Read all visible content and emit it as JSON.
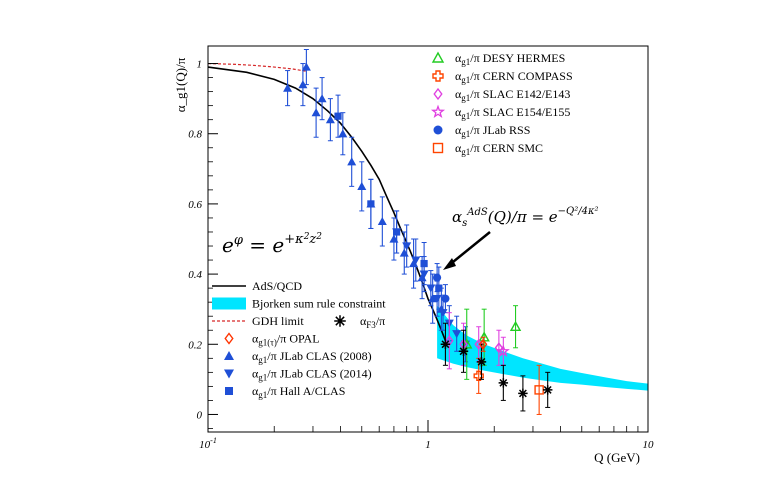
{
  "chart_data": {
    "type": "scatter",
    "title": "",
    "xlabel": "Q (GeV)",
    "ylabel": "α_g1(Q)/π",
    "xscale": "log",
    "xlim": [
      0.1,
      10
    ],
    "ylim": [
      -0.05,
      1.05
    ],
    "x_ticks": [
      {
        "value": 0.1,
        "label": "10",
        "sup": "-1"
      },
      {
        "value": 1,
        "label": "1",
        "sup": ""
      },
      {
        "value": 10,
        "label": "10",
        "sup": ""
      }
    ],
    "y_ticks": [
      {
        "value": 0,
        "label": "0"
      },
      {
        "value": 0.2,
        "label": "0.2"
      },
      {
        "value": 0.4,
        "label": "0.4"
      },
      {
        "value": 0.6,
        "label": "0.6"
      },
      {
        "value": 0.8,
        "label": "0.8"
      },
      {
        "value": 1,
        "label": "1"
      }
    ],
    "grid": false,
    "formula_left": "e^φ = e^{+κ²z²}",
    "formula_right": "α_s^AdS(Q)/π = e^{-Q²/4κ²}",
    "curves": {
      "ads_qcd": {
        "name": "AdS/QCD",
        "color": "#000000",
        "x": [
          0.1,
          0.15,
          0.2,
          0.25,
          0.3,
          0.35,
          0.4,
          0.45,
          0.5,
          0.55,
          0.6,
          0.65,
          0.7,
          0.75,
          0.8,
          0.85,
          0.9,
          0.95,
          1.0,
          1.05,
          1.1,
          1.15,
          1.2
        ],
        "y": [
          0.99,
          0.975,
          0.955,
          0.93,
          0.9,
          0.865,
          0.83,
          0.79,
          0.75,
          0.71,
          0.67,
          0.62,
          0.575,
          0.53,
          0.49,
          0.45,
          0.41,
          0.37,
          0.33,
          0.3,
          0.27,
          0.24,
          0.21
        ]
      },
      "gdh_limit": {
        "name": "GDH limit",
        "color": "#d62728",
        "x": [
          0.1,
          0.13,
          0.16,
          0.2,
          0.24,
          0.28
        ],
        "y": [
          1.0,
          0.998,
          0.995,
          0.99,
          0.985,
          0.978
        ]
      }
    },
    "band": {
      "name": "Bjorken sum rule constraint",
      "color": "#00e5ff",
      "x": [
        1.1,
        1.3,
        1.5,
        1.8,
        2.2,
        2.7,
        3.3,
        4.0,
        5.0,
        6.5,
        8.0,
        10.0
      ],
      "upper": [
        0.31,
        0.255,
        0.225,
        0.2,
        0.18,
        0.16,
        0.145,
        0.13,
        0.118,
        0.105,
        0.095,
        0.088
      ],
      "lower": [
        0.16,
        0.145,
        0.135,
        0.125,
        0.115,
        0.105,
        0.097,
        0.09,
        0.085,
        0.078,
        0.073,
        0.068
      ]
    },
    "series": [
      {
        "name": "α_g1/π JLab CLAS (2008)",
        "marker": "triangle-up",
        "color": "#1f4fd6",
        "points": [
          [
            0.23,
            0.93,
            0.05
          ],
          [
            0.27,
            0.94,
            0.06
          ],
          [
            0.28,
            0.99,
            0.05
          ],
          [
            0.31,
            0.86,
            0.07
          ],
          [
            0.33,
            0.9,
            0.06
          ],
          [
            0.36,
            0.84,
            0.06
          ],
          [
            0.41,
            0.8,
            0.06
          ],
          [
            0.45,
            0.72,
            0.07
          ],
          [
            0.5,
            0.65,
            0.07
          ],
          [
            0.55,
            0.6,
            0.07
          ],
          [
            0.62,
            0.55,
            0.07
          ],
          [
            0.7,
            0.5,
            0.06
          ],
          [
            0.78,
            0.46,
            0.06
          ],
          [
            0.86,
            0.43,
            0.07
          ],
          [
            0.94,
            0.39,
            0.06
          ],
          [
            1.05,
            0.33,
            0.07
          ],
          [
            1.15,
            0.3,
            0.06
          ]
        ]
      },
      {
        "name": "α_g1/π JLab CLAS (2014)",
        "marker": "triangle-down",
        "color": "#1f4fd6",
        "points": [
          [
            0.72,
            0.52,
            0.06
          ],
          [
            0.8,
            0.48,
            0.06
          ],
          [
            0.88,
            0.44,
            0.06
          ],
          [
            0.96,
            0.4,
            0.05
          ],
          [
            1.03,
            0.36,
            0.05
          ],
          [
            1.1,
            0.33,
            0.05
          ],
          [
            1.17,
            0.29,
            0.05
          ],
          [
            1.25,
            0.26,
            0.05
          ],
          [
            1.35,
            0.23,
            0.05
          ],
          [
            1.48,
            0.2,
            0.05
          ]
        ]
      },
      {
        "name": "α_g1/π Hall A/CLAS",
        "marker": "square",
        "color": "#1f4fd6",
        "points": [
          [
            0.39,
            0.85,
            0.06
          ],
          [
            0.55,
            0.6,
            0.07
          ],
          [
            0.72,
            0.52,
            0.06
          ],
          [
            0.96,
            0.43,
            0.06
          ],
          [
            1.12,
            0.36,
            0.06
          ]
        ]
      },
      {
        "name": "α_g1/π JLab RSS",
        "marker": "circle",
        "color": "#1f4fd6",
        "points": [
          [
            1.1,
            0.39,
            0.04
          ],
          [
            1.2,
            0.33,
            0.04
          ]
        ]
      },
      {
        "name": "α_g1/π DESY HERMES",
        "marker": "triangle-up-open",
        "color": "#22cc22",
        "points": [
          [
            1.5,
            0.2,
            0.1
          ],
          [
            1.8,
            0.22,
            0.08
          ],
          [
            2.5,
            0.25,
            0.06
          ]
        ]
      },
      {
        "name": "α_g1/π CERN COMPASS",
        "marker": "cross-open",
        "color": "#ff4400",
        "points": [
          [
            1.7,
            0.11,
            0.05
          ]
        ]
      },
      {
        "name": "α_g1/π SLAC E142/E143",
        "marker": "diamond-open",
        "color": "#e040e0",
        "points": [
          [
            1.25,
            0.21,
            0.08
          ],
          [
            1.45,
            0.2,
            0.06
          ],
          [
            1.7,
            0.2,
            0.05
          ],
          [
            2.1,
            0.19,
            0.05
          ]
        ]
      },
      {
        "name": "α_g1/π SLAC E154/E155",
        "marker": "star-open",
        "color": "#e040e0",
        "points": [
          [
            2.2,
            0.18,
            0.04
          ]
        ]
      },
      {
        "name": "α_g1/π CERN SMC",
        "marker": "square-open",
        "color": "#ff4400",
        "points": [
          [
            3.2,
            0.07,
            0.07
          ]
        ]
      },
      {
        "name": "α_F3/π",
        "marker": "asterisk",
        "color": "#000000",
        "points": [
          [
            1.2,
            0.2,
            0.06
          ],
          [
            1.45,
            0.18,
            0.06
          ],
          [
            1.75,
            0.15,
            0.05
          ],
          [
            2.2,
            0.09,
            0.05
          ],
          [
            2.7,
            0.06,
            0.05
          ],
          [
            3.5,
            0.07,
            0.05
          ]
        ]
      },
      {
        "name": "α_g1(τ)/π OPAL",
        "marker": "diamond-open",
        "color": "#ff3300",
        "points": [
          [
            1.78,
            0.2,
            0.02
          ]
        ]
      }
    ],
    "legend_top_right": [
      {
        "label": "α_g1/π DESY HERMES",
        "marker": "triangle-up-open",
        "color": "#22cc22"
      },
      {
        "label": "α_g1/π CERN COMPASS",
        "marker": "cross-open",
        "color": "#ff4400"
      },
      {
        "label": "α_g1/π SLAC E142/E143",
        "marker": "diamond-open",
        "color": "#e040e0"
      },
      {
        "label": "α_g1/π SLAC E154/E155",
        "marker": "star-open",
        "color": "#e040e0"
      },
      {
        "label": "α_g1/π JLab RSS",
        "marker": "circle",
        "color": "#1f4fd6"
      },
      {
        "label": "α_g1/π CERN SMC",
        "marker": "square-open",
        "color": "#ff4400"
      }
    ],
    "legend_bottom_left": [
      {
        "label": "AdS/QCD",
        "marker": "line",
        "color": "#000000"
      },
      {
        "label": "Bjorken sum rule constraint",
        "marker": "band",
        "color": "#00e5ff"
      },
      {
        "label": "GDH limit",
        "marker": "dashed",
        "color": "#d62728"
      },
      {
        "label": "α_g1(τ)/π OPAL",
        "marker": "diamond-open",
        "color": "#ff3300"
      },
      {
        "label": "α_g1/π JLab CLAS (2008)",
        "marker": "triangle-up",
        "color": "#1f4fd6"
      },
      {
        "label": "α_g1/π JLab CLAS (2014)",
        "marker": "triangle-down",
        "color": "#1f4fd6"
      },
      {
        "label": "α_g1/π Hall A/CLAS",
        "marker": "square",
        "color": "#1f4fd6"
      }
    ],
    "legend_inline": {
      "label": "α_F3/π",
      "marker": "asterisk",
      "color": "#000000"
    }
  }
}
